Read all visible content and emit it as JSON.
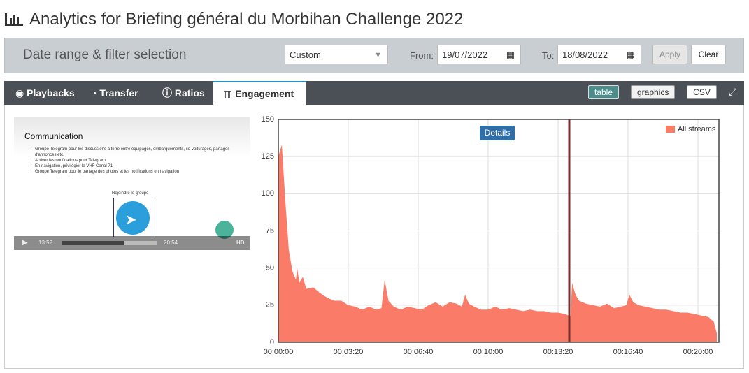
{
  "header": {
    "title": "Analytics for Briefing général du Morbihan Challenge 2022"
  },
  "filter": {
    "title": "Date range & filter selection",
    "range": "Custom",
    "from_label": "From:",
    "from": "19/07/2022",
    "to_label": "To:",
    "to": "18/08/2022",
    "apply": "Apply",
    "clear": "Clear"
  },
  "tabs": [
    "Playbacks",
    "Transfer",
    "Ratios",
    "Engagement"
  ],
  "view_buttons": [
    "table",
    "graphics",
    "CSV"
  ],
  "video": {
    "slide_title": "Communication",
    "bullets": [
      "Groupe Telegram pour les discussions à terre entre équipages, embarquements, co-voiturages, partages d'annonces etc.",
      "Activer les notifications pour Telegram",
      "En navigation, privilégier la VHF Canal 71",
      "Groupe Telegram pour le partage des photos et les notifications en navigation"
    ],
    "caption": "Rejoindre le groupe",
    "current_time": "13:52",
    "duration": "20:54",
    "quality": "HD"
  },
  "details_button": "Details",
  "chart_data": {
    "type": "area",
    "x": [
      0,
      10,
      20,
      30,
      40,
      50,
      54,
      60,
      70,
      80,
      100,
      120,
      140,
      160,
      180,
      200,
      220,
      240,
      260,
      280,
      295,
      304,
      315,
      330,
      350,
      370,
      390,
      410,
      430,
      450,
      470,
      490,
      510,
      525,
      534,
      545,
      560,
      580,
      600,
      620,
      640,
      660,
      680,
      700,
      720,
      740,
      760,
      780,
      800,
      820,
      830,
      836,
      840,
      850,
      860,
      880,
      900,
      920,
      940,
      960,
      980,
      995,
      1004,
      1015,
      1030,
      1050,
      1070,
      1090,
      1110,
      1130,
      1150,
      1170,
      1190,
      1210,
      1230,
      1245,
      1254
    ],
    "series": [
      {
        "name": "All streams",
        "color": "#fa7b68",
        "values": [
          125,
          133,
          95,
          62,
          48,
          42,
          50,
          40,
          44,
          36,
          37,
          33,
          30,
          28,
          28,
          25,
          24,
          22,
          24,
          22,
          23,
          42,
          28,
          24,
          22,
          24,
          23,
          22,
          25,
          27,
          24,
          27,
          26,
          24,
          32,
          26,
          24,
          22,
          22,
          24,
          22,
          23,
          22,
          21,
          22,
          21,
          21,
          20,
          20,
          19,
          18,
          18,
          40,
          32,
          28,
          26,
          25,
          24,
          26,
          23,
          24,
          25,
          32,
          27,
          25,
          24,
          23,
          22,
          22,
          21,
          20,
          20,
          19,
          18,
          17,
          14,
          6
        ]
      }
    ],
    "marker_x": 832,
    "xlim": [
      0,
      1260
    ],
    "ylim": [
      0,
      150
    ],
    "xticks": [
      {
        "value": 0,
        "label": "00:00:00"
      },
      {
        "value": 200,
        "label": "00:03:20"
      },
      {
        "value": 400,
        "label": "00:06:40"
      },
      {
        "value": 600,
        "label": "00:10:00"
      },
      {
        "value": 800,
        "label": "00:13:20"
      },
      {
        "value": 1000,
        "label": "00:16:40"
      },
      {
        "value": 1200,
        "label": "00:20:00"
      }
    ],
    "yticks": [
      0,
      25,
      50,
      75,
      100,
      125,
      150
    ],
    "grid": true,
    "legend": "top-right"
  }
}
